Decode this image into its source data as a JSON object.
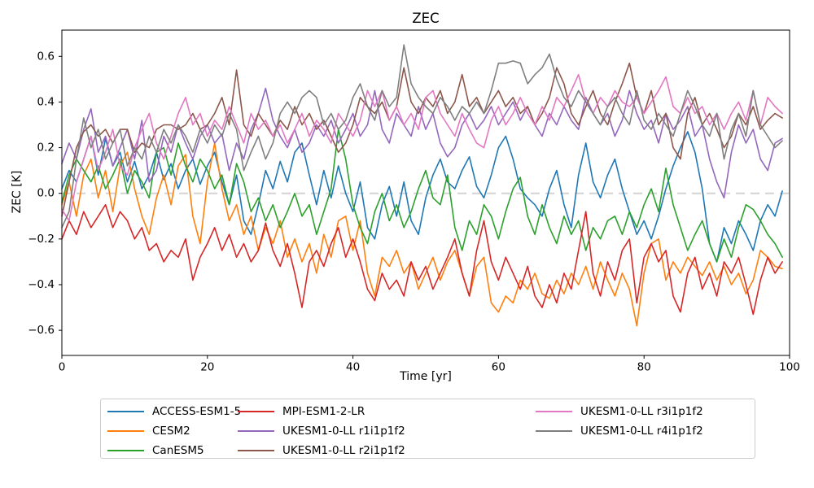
{
  "chart_data": {
    "type": "line",
    "title": "ZEC",
    "xlabel": "Time [yr]",
    "ylabel": "ZEC [K]",
    "xlim": [
      0,
      100
    ],
    "ylim": [
      -0.71,
      0.715
    ],
    "xticks": [
      0,
      20,
      40,
      60,
      80,
      100
    ],
    "yticks": [
      -0.6,
      -0.4,
      -0.2,
      0.0,
      0.2,
      0.4,
      0.6
    ],
    "grid": false,
    "axis_color": "#000000",
    "zero_line": {
      "y": 0,
      "color": "#d3d3d3",
      "style": "dashed",
      "width": 2
    },
    "legend": {
      "position": "below-center",
      "columns": 3,
      "border_color": "#cccccc"
    },
    "x": [
      0,
      1,
      2,
      3,
      4,
      5,
      6,
      7,
      8,
      9,
      10,
      11,
      12,
      13,
      14,
      15,
      16,
      17,
      18,
      19,
      20,
      21,
      22,
      23,
      24,
      25,
      26,
      27,
      28,
      29,
      30,
      31,
      32,
      33,
      34,
      35,
      36,
      37,
      38,
      39,
      40,
      41,
      42,
      43,
      44,
      45,
      46,
      47,
      48,
      49,
      50,
      51,
      52,
      53,
      54,
      55,
      56,
      57,
      58,
      59,
      60,
      61,
      62,
      63,
      64,
      65,
      66,
      67,
      68,
      69,
      70,
      71,
      72,
      73,
      74,
      75,
      76,
      77,
      78,
      79,
      80,
      81,
      82,
      83,
      84,
      85,
      86,
      87,
      88,
      89,
      90,
      91,
      92,
      93,
      94,
      95,
      96,
      97,
      98,
      99
    ],
    "series": [
      {
        "name": "ACCESS-ESM1-5",
        "color": "#1f77b4",
        "values": [
          0.02,
          0.1,
          0.05,
          0.15,
          0.25,
          0.08,
          0.24,
          0.12,
          0.18,
          0.05,
          0.14,
          0.02,
          0.08,
          0.18,
          0.06,
          0.13,
          0.02,
          0.1,
          0.15,
          0.04,
          0.12,
          0.18,
          0.05,
          -0.05,
          0.08,
          -0.12,
          -0.18,
          -0.05,
          0.1,
          0.02,
          0.14,
          0.05,
          0.18,
          0.22,
          0.08,
          -0.05,
          0.1,
          -0.02,
          0.12,
          0.0,
          -0.08,
          0.05,
          -0.15,
          -0.2,
          -0.05,
          0.03,
          -0.1,
          0.05,
          -0.12,
          -0.18,
          -0.02,
          0.08,
          0.15,
          0.05,
          0.02,
          0.1,
          0.16,
          0.03,
          -0.02,
          0.08,
          0.2,
          0.25,
          0.15,
          0.02,
          -0.02,
          -0.05,
          -0.1,
          0.02,
          0.1,
          -0.05,
          -0.15,
          0.08,
          0.22,
          0.05,
          -0.02,
          0.08,
          0.15,
          0.02,
          -0.08,
          -0.18,
          -0.12,
          -0.2,
          -0.1,
          0.02,
          0.12,
          0.2,
          0.27,
          0.18,
          0.02,
          -0.22,
          -0.3,
          -0.15,
          -0.22,
          -0.12,
          -0.18,
          -0.25,
          -0.12,
          -0.05,
          -0.1,
          0.01
        ]
      },
      {
        "name": "CESM2",
        "color": "#ff7f0e",
        "values": [
          -0.05,
          0.05,
          -0.1,
          0.08,
          0.15,
          -0.02,
          0.1,
          -0.08,
          0.12,
          0.18,
          0.02,
          -0.1,
          -0.18,
          -0.02,
          0.08,
          -0.05,
          0.12,
          0.17,
          -0.1,
          -0.22,
          0.05,
          0.22,
          0.02,
          -0.12,
          -0.05,
          -0.18,
          -0.1,
          -0.25,
          -0.15,
          -0.22,
          -0.12,
          -0.28,
          -0.2,
          -0.3,
          -0.22,
          -0.35,
          -0.18,
          -0.28,
          -0.12,
          -0.1,
          -0.25,
          -0.12,
          -0.35,
          -0.45,
          -0.28,
          -0.32,
          -0.25,
          -0.35,
          -0.3,
          -0.42,
          -0.35,
          -0.28,
          -0.38,
          -0.3,
          -0.25,
          -0.35,
          -0.45,
          -0.32,
          -0.28,
          -0.48,
          -0.52,
          -0.45,
          -0.48,
          -0.38,
          -0.42,
          -0.35,
          -0.44,
          -0.46,
          -0.38,
          -0.44,
          -0.35,
          -0.4,
          -0.32,
          -0.42,
          -0.3,
          -0.38,
          -0.45,
          -0.35,
          -0.42,
          -0.58,
          -0.35,
          -0.22,
          -0.2,
          -0.38,
          -0.3,
          -0.35,
          -0.28,
          -0.32,
          -0.36,
          -0.3,
          -0.38,
          -0.32,
          -0.4,
          -0.35,
          -0.44,
          -0.38,
          -0.25,
          -0.28,
          -0.32,
          -0.33
        ]
      },
      {
        "name": "CanESM5",
        "color": "#2ca02c",
        "values": [
          -0.04,
          0.08,
          0.15,
          0.1,
          0.05,
          0.12,
          0.02,
          0.08,
          0.15,
          0.0,
          0.1,
          0.05,
          -0.02,
          0.18,
          0.2,
          0.08,
          0.22,
          0.12,
          0.05,
          0.15,
          0.1,
          0.02,
          0.08,
          -0.05,
          0.13,
          0.05,
          -0.08,
          -0.02,
          -0.12,
          -0.05,
          -0.15,
          -0.08,
          0.0,
          -0.1,
          -0.05,
          -0.18,
          -0.08,
          0.02,
          0.28,
          0.15,
          -0.05,
          -0.15,
          -0.22,
          -0.08,
          0.0,
          -0.12,
          -0.05,
          -0.15,
          -0.08,
          0.02,
          0.1,
          -0.02,
          -0.05,
          0.08,
          -0.15,
          -0.25,
          -0.12,
          -0.18,
          -0.05,
          -0.1,
          -0.2,
          -0.08,
          0.02,
          0.07,
          -0.1,
          -0.18,
          -0.05,
          -0.15,
          -0.22,
          -0.1,
          -0.18,
          -0.12,
          -0.25,
          -0.15,
          -0.2,
          -0.12,
          -0.1,
          -0.18,
          -0.08,
          -0.15,
          -0.05,
          0.02,
          -0.08,
          0.11,
          -0.05,
          -0.15,
          -0.25,
          -0.18,
          -0.12,
          -0.22,
          -0.3,
          -0.2,
          -0.28,
          -0.15,
          -0.05,
          -0.07,
          -0.12,
          -0.18,
          -0.22,
          -0.28
        ]
      },
      {
        "name": "MPI-ESM1-2-LR",
        "color": "#d62728",
        "values": [
          -0.2,
          -0.12,
          -0.18,
          -0.08,
          -0.15,
          -0.1,
          -0.05,
          -0.15,
          -0.08,
          -0.12,
          -0.2,
          -0.15,
          -0.25,
          -0.22,
          -0.3,
          -0.25,
          -0.28,
          -0.2,
          -0.38,
          -0.28,
          -0.22,
          -0.15,
          -0.25,
          -0.18,
          -0.28,
          -0.22,
          -0.3,
          -0.25,
          -0.13,
          -0.25,
          -0.32,
          -0.22,
          -0.35,
          -0.5,
          -0.3,
          -0.25,
          -0.32,
          -0.22,
          -0.15,
          -0.28,
          -0.2,
          -0.3,
          -0.42,
          -0.47,
          -0.35,
          -0.42,
          -0.38,
          -0.45,
          -0.3,
          -0.38,
          -0.32,
          -0.42,
          -0.35,
          -0.28,
          -0.2,
          -0.35,
          -0.45,
          -0.25,
          -0.12,
          -0.3,
          -0.38,
          -0.28,
          -0.35,
          -0.42,
          -0.32,
          -0.45,
          -0.5,
          -0.4,
          -0.48,
          -0.35,
          -0.42,
          -0.25,
          -0.08,
          -0.35,
          -0.45,
          -0.3,
          -0.38,
          -0.25,
          -0.2,
          -0.48,
          -0.28,
          -0.22,
          -0.3,
          -0.25,
          -0.45,
          -0.52,
          -0.35,
          -0.28,
          -0.42,
          -0.35,
          -0.45,
          -0.3,
          -0.35,
          -0.28,
          -0.4,
          -0.53,
          -0.38,
          -0.28,
          -0.35,
          -0.3
        ]
      },
      {
        "name": "UKESM1-0-LL r1i1p1f2",
        "color": "#9467bd",
        "values": [
          0.13,
          0.22,
          0.15,
          0.28,
          0.37,
          0.18,
          0.25,
          0.12,
          0.2,
          0.28,
          0.15,
          0.32,
          0.05,
          0.1,
          0.25,
          0.18,
          0.3,
          0.22,
          0.15,
          0.25,
          0.3,
          0.22,
          0.26,
          0.1,
          0.22,
          0.15,
          0.28,
          0.35,
          0.46,
          0.32,
          0.25,
          0.2,
          0.28,
          0.18,
          0.22,
          0.3,
          0.25,
          0.32,
          0.22,
          0.28,
          0.35,
          0.25,
          0.3,
          0.45,
          0.28,
          0.22,
          0.35,
          0.3,
          0.25,
          0.38,
          0.28,
          0.35,
          0.22,
          0.16,
          0.2,
          0.3,
          0.35,
          0.28,
          0.32,
          0.38,
          0.3,
          0.35,
          0.4,
          0.32,
          0.38,
          0.3,
          0.25,
          0.35,
          0.3,
          0.38,
          0.32,
          0.28,
          0.42,
          0.35,
          0.3,
          0.35,
          0.25,
          0.32,
          0.45,
          0.35,
          0.28,
          0.32,
          0.22,
          0.35,
          0.28,
          0.32,
          0.38,
          0.25,
          0.3,
          0.15,
          0.05,
          -0.02,
          0.18,
          0.3,
          0.22,
          0.28,
          0.15,
          0.1,
          0.22,
          0.24
        ]
      },
      {
        "name": "UKESM1-0-LL r2i1p1f2",
        "color": "#8c564b",
        "values": [
          -0.1,
          0.05,
          0.2,
          0.27,
          0.3,
          0.25,
          0.28,
          0.22,
          0.28,
          0.28,
          0.18,
          0.22,
          0.2,
          0.28,
          0.3,
          0.3,
          0.28,
          0.3,
          0.35,
          0.28,
          0.3,
          0.35,
          0.42,
          0.3,
          0.54,
          0.3,
          0.25,
          0.35,
          0.3,
          0.25,
          0.32,
          0.28,
          0.38,
          0.3,
          0.35,
          0.28,
          0.32,
          0.25,
          0.18,
          0.22,
          0.3,
          0.42,
          0.38,
          0.35,
          0.4,
          0.32,
          0.38,
          0.55,
          0.4,
          0.35,
          0.42,
          0.38,
          0.45,
          0.35,
          0.4,
          0.52,
          0.38,
          0.42,
          0.35,
          0.4,
          0.45,
          0.38,
          0.42,
          0.35,
          0.38,
          0.3,
          0.35,
          0.42,
          0.55,
          0.48,
          0.35,
          0.3,
          0.38,
          0.45,
          0.35,
          0.3,
          0.4,
          0.48,
          0.57,
          0.42,
          0.35,
          0.45,
          0.3,
          0.35,
          0.2,
          0.15,
          0.35,
          0.42,
          0.3,
          0.35,
          0.28,
          0.2,
          0.25,
          0.35,
          0.3,
          0.38,
          0.28,
          0.32,
          0.35,
          0.33
        ]
      },
      {
        "name": "UKESM1-0-LL r3i1p1f2",
        "color": "#e377c2",
        "values": [
          -0.07,
          -0.12,
          0.05,
          0.15,
          0.25,
          0.1,
          0.18,
          0.28,
          0.12,
          0.08,
          0.2,
          0.28,
          0.35,
          0.22,
          0.15,
          0.25,
          0.35,
          0.42,
          0.3,
          0.35,
          0.25,
          0.32,
          0.28,
          0.38,
          0.3,
          0.22,
          0.35,
          0.28,
          0.32,
          0.25,
          0.3,
          0.22,
          0.28,
          0.35,
          0.25,
          0.32,
          0.28,
          0.22,
          0.35,
          0.3,
          0.25,
          0.32,
          0.45,
          0.38,
          0.45,
          0.32,
          0.38,
          0.3,
          0.35,
          0.28,
          0.42,
          0.45,
          0.35,
          0.3,
          0.25,
          0.35,
          0.28,
          0.22,
          0.2,
          0.32,
          0.38,
          0.3,
          0.35,
          0.42,
          0.35,
          0.3,
          0.38,
          0.32,
          0.42,
          0.38,
          0.45,
          0.52,
          0.4,
          0.35,
          0.42,
          0.38,
          0.45,
          0.4,
          0.38,
          0.42,
          0.35,
          0.4,
          0.45,
          0.51,
          0.38,
          0.35,
          0.42,
          0.35,
          0.38,
          0.3,
          0.35,
          0.28,
          0.35,
          0.4,
          0.32,
          0.45,
          0.3,
          0.42,
          0.38,
          0.35
        ]
      },
      {
        "name": "UKESM1-0-LL r4i1p1f2",
        "color": "#7f7f7f",
        "values": [
          -0.15,
          -0.08,
          0.15,
          0.33,
          0.2,
          0.28,
          0.15,
          0.22,
          0.28,
          0.12,
          0.2,
          0.15,
          0.25,
          0.18,
          0.28,
          0.22,
          0.3,
          0.25,
          0.18,
          0.28,
          0.22,
          0.3,
          0.25,
          0.35,
          0.28,
          0.1,
          0.18,
          0.25,
          0.15,
          0.22,
          0.35,
          0.4,
          0.35,
          0.42,
          0.45,
          0.42,
          0.3,
          0.35,
          0.28,
          0.32,
          0.42,
          0.48,
          0.38,
          0.32,
          0.45,
          0.38,
          0.42,
          0.65,
          0.48,
          0.42,
          0.38,
          0.35,
          0.42,
          0.38,
          0.32,
          0.38,
          0.35,
          0.4,
          0.35,
          0.45,
          0.57,
          0.57,
          0.58,
          0.57,
          0.48,
          0.52,
          0.55,
          0.61,
          0.5,
          0.42,
          0.38,
          0.45,
          0.4,
          0.35,
          0.3,
          0.38,
          0.42,
          0.35,
          0.3,
          0.45,
          0.32,
          0.28,
          0.35,
          0.3,
          0.25,
          0.35,
          0.45,
          0.38,
          0.3,
          0.25,
          0.35,
          0.15,
          0.28,
          0.35,
          0.25,
          0.45,
          0.3,
          0.25,
          0.2,
          0.23
        ]
      }
    ]
  }
}
